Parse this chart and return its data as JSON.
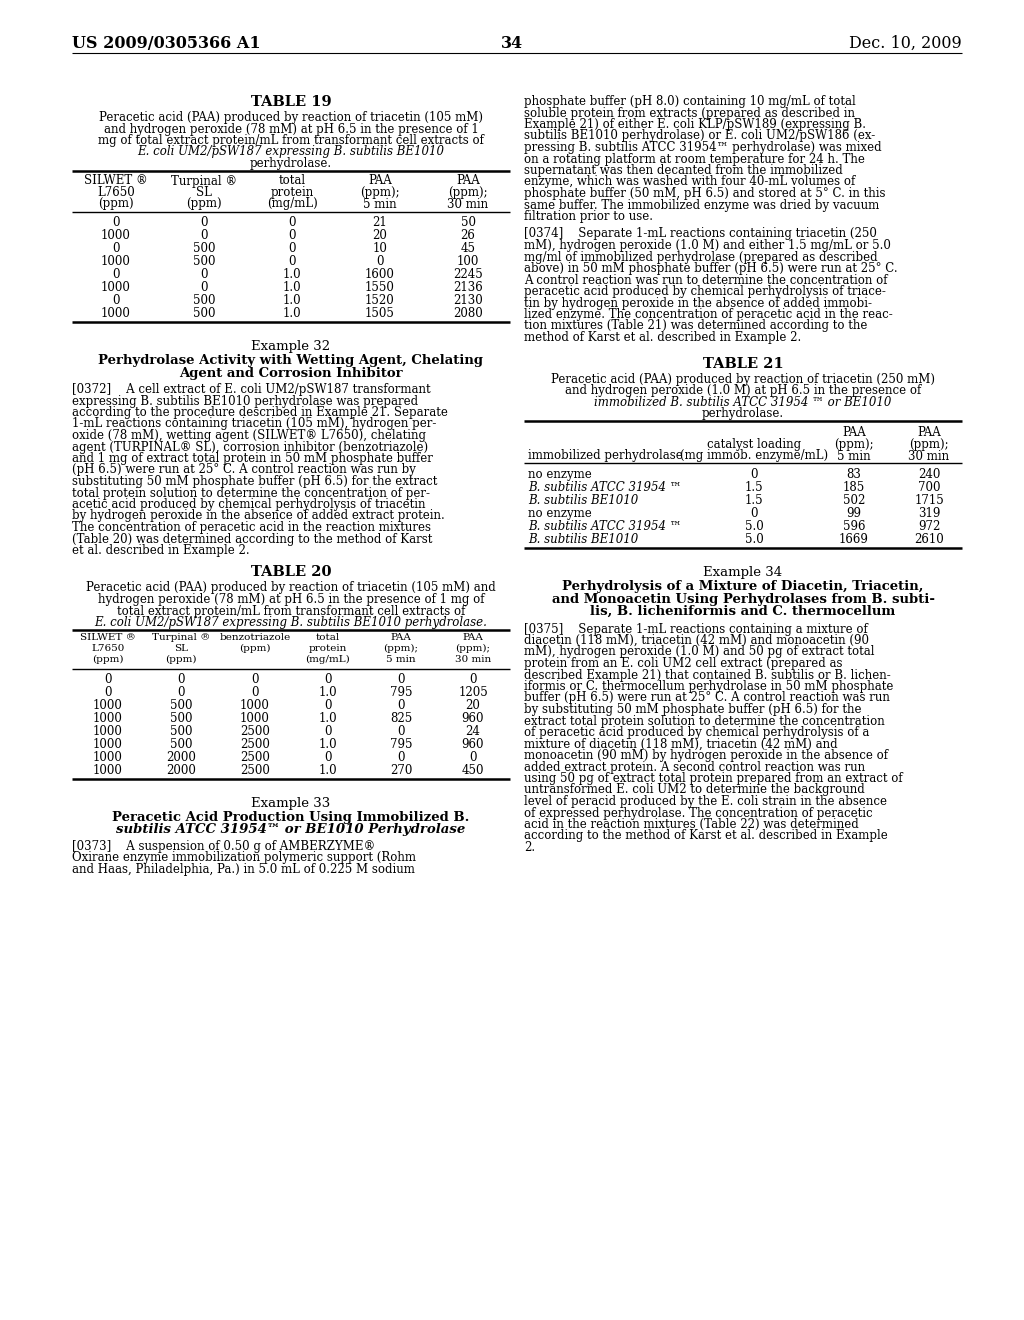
{
  "page_header_left": "US 2009/0305366 A1",
  "page_header_right": "Dec. 10, 2009",
  "page_number": "34",
  "background_color": "#ffffff",
  "table19_title": "TABLE 19",
  "table19_caption_lines": [
    "Peracetic acid (PAA) produced by reaction of triacetin (105 mM)",
    "and hydrogen peroxide (78 mM) at pH 6.5 in the presence of 1",
    "mg of total extract protein/mL from transformant cell extracts of",
    "E. coli UM2/pSW187 expressing B. subtilis BE1010",
    "perhydrolase."
  ],
  "table19_caption_italic": [
    false,
    false,
    false,
    true,
    false
  ],
  "table19_col_headers": [
    [
      "SILWET ®",
      "L7650",
      "(ppm)"
    ],
    [
      "Turpinal ®",
      "SL",
      "(ppm)"
    ],
    [
      "total",
      "protein",
      "(mg/mL)"
    ],
    [
      "PAA",
      "(ppm);",
      "5 min"
    ],
    [
      "PAA",
      "(ppm);",
      "30 min"
    ]
  ],
  "table19_data": [
    [
      "0",
      "0",
      "0",
      "21",
      "50"
    ],
    [
      "1000",
      "0",
      "0",
      "20",
      "26"
    ],
    [
      "0",
      "500",
      "0",
      "10",
      "45"
    ],
    [
      "1000",
      "500",
      "0",
      "0",
      "100"
    ],
    [
      "0",
      "0",
      "1.0",
      "1600",
      "2245"
    ],
    [
      "1000",
      "0",
      "1.0",
      "1550",
      "2136"
    ],
    [
      "0",
      "500",
      "1.0",
      "1520",
      "2130"
    ],
    [
      "1000",
      "500",
      "1.0",
      "1505",
      "2080"
    ]
  ],
  "example32_title": "Example 32",
  "example32_subtitle": [
    "Perhydrolase Activity with Wetting Agent, Chelating",
    "Agent and Corrosion Inhibitor"
  ],
  "example32_para_lines": [
    "[0372]    A cell extract of E. coli UM2/pSW187 transformant",
    "expressing B. subtilis BE1010 perhydrolase was prepared",
    "according to the procedure described in Example 21. Separate",
    "1-mL reactions containing triacetin (105 mM), hydrogen per-",
    "oxide (78 mM), wetting agent (SILWET® L7650), chelating",
    "agent (TURPINAL® SL), corrosion inhibitor (benzotriazole)",
    "and 1 mg of extract total protein in 50 mM phosphate buffer",
    "(pH 6.5) were run at 25° C. A control reaction was run by",
    "substituting 50 mM phosphate buffer (pH 6.5) for the extract",
    "total protein solution to determine the concentration of per-",
    "acetic acid produced by chemical perhydrolysis of triacetin",
    "by hydrogen peroxide in the absence of added extract protein.",
    "The concentration of peracetic acid in the reaction mixtures",
    "(Table 20) was determined according to the method of Karst",
    "et al. described in Example 2."
  ],
  "table20_title": "TABLE 20",
  "table20_caption_lines": [
    "Peracetic acid (PAA) produced by reaction of triacetin (105 mM) and",
    "hydrogen peroxide (78 mM) at pH 6.5 in the presence of 1 mg of",
    "total extract protein/mL from transformant cell extracts of",
    "E. coli UM2/pSW187 expressing B. subtilis BE1010 perhydrolase."
  ],
  "table20_caption_italic": [
    false,
    false,
    false,
    true
  ],
  "table20_col_headers": [
    [
      "SILWET ®",
      "L7650",
      "(ppm)"
    ],
    [
      "Turpinal ®",
      "SL",
      "(ppm)"
    ],
    [
      "benzotriazole",
      "(ppm)",
      ""
    ],
    [
      "total",
      "protein",
      "(mg/mL)"
    ],
    [
      "PAA",
      "(ppm);",
      "5 min"
    ],
    [
      "PAA",
      "(ppm);",
      "30 min"
    ]
  ],
  "table20_data": [
    [
      "0",
      "0",
      "0",
      "0",
      "0",
      "0"
    ],
    [
      "0",
      "0",
      "0",
      "1.0",
      "795",
      "1205"
    ],
    [
      "1000",
      "500",
      "1000",
      "0",
      "0",
      "20"
    ],
    [
      "1000",
      "500",
      "1000",
      "1.0",
      "825",
      "960"
    ],
    [
      "1000",
      "500",
      "2500",
      "0",
      "0",
      "24"
    ],
    [
      "1000",
      "500",
      "2500",
      "1.0",
      "795",
      "960"
    ],
    [
      "1000",
      "2000",
      "2500",
      "0",
      "0",
      "0"
    ],
    [
      "1000",
      "2000",
      "2500",
      "1.0",
      "270",
      "450"
    ]
  ],
  "example33_title": "Example 33",
  "example33_subtitle": [
    "Peracetic Acid Production Using Immobilized B.",
    "subtilis ATCC 31954™ or BE1010 Perhydrolase"
  ],
  "example33_subtitle_italic": [
    false,
    true
  ],
  "example33_para_lines": [
    "[0373]    A suspension of 0.50 g of AMBERZYME®",
    "Oxirane enzyme immobilization polymeric support (Rohm",
    "and Haas, Philadelphia, Pa.) in 5.0 mL of 0.225 M sodium"
  ],
  "right_para1_lines": [
    "phosphate buffer (pH 8.0) containing 10 mg/mL of total",
    "soluble protein from extracts (prepared as described in",
    "Example 21) of either E. coli KLP/pSW189 (expressing B.",
    "subtilis BE1010 perhydrolase) or E. coli UM2/pSW186 (ex-",
    "pressing B. subtilis ATCC 31954™ perhydrolase) was mixed",
    "on a rotating platform at room temperature for 24 h. The",
    "supernatant was then decanted from the immobilized",
    "enzyme, which was washed with four 40-mL volumes of",
    "phosphate buffer (50 mM, pH 6.5) and stored at 5° C. in this",
    "same buffer. The immobilized enzyme was dried by vacuum",
    "filtration prior to use."
  ],
  "right_para2_lines": [
    "[0374]    Separate 1-mL reactions containing triacetin (250",
    "mM), hydrogen peroxide (1.0 M) and either 1.5 mg/mL or 5.0",
    "mg/ml of immobilized perhydrolase (prepared as described",
    "above) in 50 mM phosphate buffer (pH 6.5) were run at 25° C.",
    "A control reaction was run to determine the concentration of",
    "peracetic acid produced by chemical perhydrolysis of triace-",
    "tin by hydrogen peroxide in the absence of added immobi-",
    "lized enzyme. The concentration of peracetic acid in the reac-",
    "tion mixtures (Table 21) was determined according to the",
    "method of Karst et al. described in Example 2."
  ],
  "table21_title": "TABLE 21",
  "table21_caption_lines": [
    "Peracetic acid (PAA) produced by reaction of triacetin (250 mM)",
    "and hydrogen peroxide (1.0 M) at pH 6.5 in the presence of",
    "immobilized B. subtilis ATCC 31954 ™ or BE1010",
    "perhydrolase."
  ],
  "table21_caption_italic": [
    false,
    false,
    true,
    false
  ],
  "table21_col_headers": [
    [
      "",
      "",
      "immobilized perhydrolase"
    ],
    [
      "catalyst loading",
      "(mg immob. enzyme/mL)",
      ""
    ],
    [
      "PAA",
      "(ppm);",
      "5 min"
    ],
    [
      "PAA",
      "(ppm);",
      "30 min"
    ]
  ],
  "table21_data": [
    [
      "no enzyme",
      "0",
      "83",
      "240"
    ],
    [
      "B. subtilis ATCC 31954 ™",
      "1.5",
      "185",
      "700"
    ],
    [
      "B. subtilis BE1010",
      "1.5",
      "502",
      "1715"
    ],
    [
      "no enzyme",
      "0",
      "99",
      "319"
    ],
    [
      "B. subtilis ATCC 31954 ™",
      "5.0",
      "596",
      "972"
    ],
    [
      "B. subtilis BE1010",
      "5.0",
      "1669",
      "2610"
    ]
  ],
  "table21_italic_col0": [
    false,
    true,
    true,
    false,
    true,
    true
  ],
  "example34_title": "Example 34",
  "example34_subtitle": [
    "Perhydrolysis of a Mixture of Diacetin, Triacetin,",
    "and Monoacetin Using Perhydrolases from B. subti-",
    "lis, B. licheniformis and C. thermocellum"
  ],
  "example34_para_lines": [
    "[0375]    Separate 1-mL reactions containing a mixture of",
    "diacetin (118 mM), triacetin (42 mM) and monoacetin (90",
    "mM), hydrogen peroxide (1.0 M) and 50 pg of extract total",
    "protein from an E. coli UM2 cell extract (prepared as",
    "described Example 21) that contained B. subtilis or B. lichen-",
    "iformis or C. thermocellum perhydrolase in 50 mM phosphate",
    "buffer (pH 6.5) were run at 25° C. A control reaction was run",
    "by substituting 50 mM phosphate buffer (pH 6.5) for the",
    "extract total protein solution to determine the concentration",
    "of peracetic acid produced by chemical perhydrolysis of a",
    "mixture of diacetin (118 mM), triacetin (42 mM) and",
    "monoacetin (90 mM) by hydrogen peroxide in the absence of",
    "added extract protein. A second control reaction was run",
    "using 50 pg of extract total protein prepared from an extract of",
    "untransformed E. coli UM2 to determine the background",
    "level of peracid produced by the E. coli strain in the absence",
    "of expressed perhydrolase. The concentration of peracetic",
    "acid in the reaction mixtures (Table 22) was determined",
    "according to the method of Karst et al. described in Example",
    "2."
  ]
}
